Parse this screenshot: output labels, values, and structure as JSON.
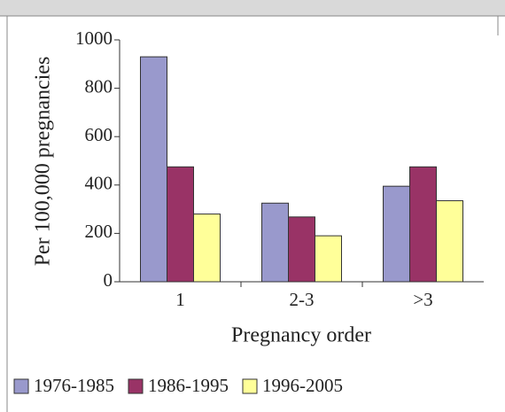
{
  "chart_data": {
    "type": "bar",
    "x_label": "Pregnancy order",
    "y_label": "Per 100,000 pregnancies",
    "categories": [
      "1",
      "2-3",
      ">3"
    ],
    "series": [
      {
        "name": "1976-1985",
        "color": "#9999cc",
        "values": [
          930,
          325,
          395
        ]
      },
      {
        "name": "1986-1995",
        "color": "#993366",
        "values": [
          475,
          268,
          475
        ]
      },
      {
        "name": "1996-2005",
        "color": "#ffff99",
        "values": [
          280,
          190,
          335
        ]
      }
    ],
    "ylim": [
      0,
      1000
    ],
    "yticks": [
      0,
      200,
      400,
      600,
      800,
      1000
    ],
    "grid": false,
    "legend": "bottom"
  }
}
